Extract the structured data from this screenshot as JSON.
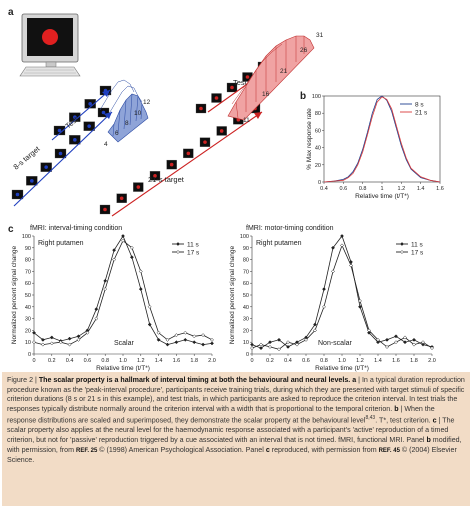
{
  "panel_a": {
    "label": "a",
    "test_label_left": "Test",
    "target_label_left": "8-s target",
    "test_label_right": "Test",
    "target_label_right": "21-s target",
    "trial_numbers_left": [
      "12",
      "10",
      "8",
      "6",
      "4"
    ],
    "trial_numbers_right": [
      "31",
      "26",
      "21",
      "16",
      "11"
    ],
    "colors": {
      "left_hist": "#2b4aa3",
      "right_hist": "#d9413f",
      "stim_left": "#1f3fbf",
      "stim_right": "#cc2222"
    }
  },
  "panel_b": {
    "label": "b",
    "chart_data": {
      "type": "line",
      "xlabel": "Relative time (t/T*)",
      "ylabel": "% Max response rate",
      "xlim": [
        0.4,
        1.6
      ],
      "ylim": [
        0,
        100
      ],
      "x_ticks": [
        "0.4",
        "0.6",
        "0.8",
        "1",
        "1.2",
        "1.4",
        "1.6"
      ],
      "y_ticks": [
        "0",
        "20",
        "40",
        "60",
        "80",
        "100"
      ],
      "legend_position": "top-right",
      "series": [
        {
          "name": "8 s",
          "color": "#1c3f8f",
          "x": [
            0.4,
            0.5,
            0.6,
            0.65,
            0.7,
            0.75,
            0.8,
            0.85,
            0.9,
            0.95,
            1.0,
            1.05,
            1.1,
            1.15,
            1.2,
            1.25,
            1.3,
            1.4,
            1.5,
            1.6
          ],
          "y": [
            0,
            1,
            3,
            6,
            12,
            22,
            38,
            58,
            80,
            96,
            100,
            95,
            82,
            62,
            42,
            26,
            15,
            5,
            2,
            0
          ]
        },
        {
          "name": "21 s",
          "color": "#d93a3a",
          "x": [
            0.4,
            0.5,
            0.6,
            0.65,
            0.7,
            0.75,
            0.8,
            0.85,
            0.9,
            0.95,
            1.0,
            1.05,
            1.1,
            1.15,
            1.2,
            1.25,
            1.3,
            1.4,
            1.5,
            1.6
          ],
          "y": [
            0,
            1,
            2,
            5,
            10,
            20,
            35,
            55,
            76,
            93,
            99,
            96,
            85,
            65,
            45,
            28,
            16,
            6,
            2,
            0
          ]
        }
      ]
    }
  },
  "panel_c": {
    "label": "c",
    "charts": [
      {
        "title": "fMRI: interval-timing condition",
        "region": "Right putamen",
        "annotation": "Scalar",
        "chart_data": {
          "type": "line",
          "xlabel": "Relative time (t/T*)",
          "ylabel": "Normalized percent signal change",
          "xlim": [
            0,
            2.0
          ],
          "ylim": [
            0,
            100
          ],
          "x_ticks": [
            "0",
            "0.2",
            "0.4",
            "0.6",
            "0.8",
            "1.0",
            "1.2",
            "1.4",
            "1.6",
            "1.8",
            "2.0"
          ],
          "y_ticks": [
            "0",
            "10",
            "20",
            "30",
            "40",
            "50",
            "60",
            "70",
            "80",
            "90",
            "100"
          ],
          "legend_position": "top-right",
          "series": [
            {
              "name": "11 s",
              "marker": "diamond-filled",
              "x": [
                0,
                0.1,
                0.2,
                0.3,
                0.4,
                0.5,
                0.6,
                0.7,
                0.8,
                0.9,
                1.0,
                1.1,
                1.2,
                1.3,
                1.4,
                1.5,
                1.6,
                1.7,
                1.8,
                1.9,
                2.0
              ],
              "y": [
                18,
                12,
                14,
                11,
                13,
                15,
                20,
                38,
                62,
                88,
                100,
                82,
                55,
                25,
                12,
                8,
                10,
                12,
                10,
                8,
                9
              ]
            },
            {
              "name": "17 s",
              "marker": "diamond-open",
              "x": [
                0,
                0.1,
                0.2,
                0.3,
                0.4,
                0.5,
                0.6,
                0.7,
                0.8,
                0.9,
                1.0,
                1.1,
                1.2,
                1.3,
                1.4,
                1.5,
                1.6,
                1.7,
                1.8,
                1.9,
                2.0
              ],
              "y": [
                10,
                8,
                9,
                10,
                8,
                12,
                18,
                30,
                55,
                80,
                96,
                90,
                70,
                40,
                18,
                12,
                16,
                18,
                15,
                16,
                12
              ]
            }
          ]
        }
      },
      {
        "title": "fMRI: motor-timing condition",
        "region": "Right putamen",
        "annotation": "Non-scalar",
        "chart_data": {
          "type": "line",
          "xlabel": "Relative time (t/T*)",
          "ylabel": "Normalized percent signal change",
          "xlim": [
            0,
            2.0
          ],
          "ylim": [
            0,
            100
          ],
          "x_ticks": [
            "0",
            "0.2",
            "0.4",
            "0.6",
            "0.8",
            "1.0",
            "1.2",
            "1.4",
            "1.6",
            "1.8",
            "2.0"
          ],
          "y_ticks": [
            "0",
            "10",
            "20",
            "30",
            "40",
            "50",
            "60",
            "70",
            "80",
            "90",
            "100"
          ],
          "legend_position": "top-right",
          "series": [
            {
              "name": "11 s",
              "marker": "diamond-filled",
              "x": [
                0,
                0.1,
                0.2,
                0.3,
                0.4,
                0.5,
                0.6,
                0.7,
                0.8,
                0.9,
                1.0,
                1.1,
                1.2,
                1.3,
                1.4,
                1.5,
                1.6,
                1.7,
                1.8,
                1.9,
                2.0
              ],
              "y": [
                8,
                5,
                10,
                12,
                6,
                10,
                14,
                25,
                55,
                90,
                100,
                78,
                40,
                18,
                10,
                12,
                15,
                10,
                12,
                8,
                6
              ]
            },
            {
              "name": "17 s",
              "marker": "diamond-open",
              "x": [
                0,
                0.1,
                0.2,
                0.3,
                0.4,
                0.5,
                0.6,
                0.7,
                0.8,
                0.9,
                1.0,
                1.1,
                1.2,
                1.3,
                1.4,
                1.5,
                1.6,
                1.7,
                1.8,
                1.9,
                2.0
              ],
              "y": [
                5,
                8,
                6,
                4,
                10,
                8,
                12,
                20,
                40,
                70,
                92,
                75,
                45,
                20,
                12,
                6,
                10,
                14,
                8,
                10,
                5
              ]
            }
          ]
        }
      }
    ]
  },
  "caption": {
    "figure_label": "Figure 2 | ",
    "title": "The scalar property is a hallmark of interval timing at both the behavioural and neural levels.",
    "part_a_label": " a",
    "part_a_text": " | In a typical duration reproduction procedure known as the 'peak-interval procedure', participants receive training trials, during which they are presented with target stimuli of specific criterion durations (8 s or 21 s in this example), and test trials, in which participants are asked to reproduce the criterion interval. In test trials the responses typically distribute normally around the criterion interval with a width that is proportional to the temporal criterion.",
    "part_b_label": " b",
    "part_b_text": " | When the response distributions are scaled and superimposed, they demonstrate the scalar property at the behavioural level",
    "part_b_refs": "8,43",
    "part_b_text2": ". T*, test criterion.",
    "part_c_label": " c",
    "part_c_text": " | The scalar property also applies at the neural level for the haemodynamic response associated with a participant's 'active' reproduction of a timed criterion, but not for 'passive' reproduction triggered by a cue associated with an interval that is not timed. fMRI, functional MRI. Panel ",
    "part_c_b": "b",
    "part_c_text2": " modified, with permission, from ",
    "ref1": "REF. 25",
    "part_c_text3": " © (1998) American Psychological Association. Panel ",
    "part_c_c": "c",
    "part_c_text4": " reproduced, with permission from ",
    "ref2": "REF. 45",
    "part_c_text5": " © (2004) Elsevier Science."
  }
}
